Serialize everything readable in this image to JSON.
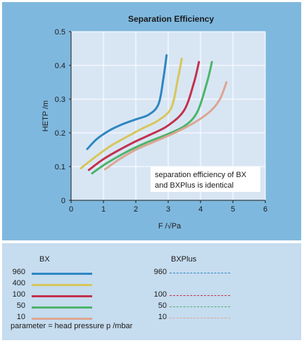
{
  "chart_data": {
    "type": "line",
    "title": "Separation Efficiency",
    "xlabel": "F /√Pa",
    "ylabel": "HETP /m",
    "xlim": [
      0,
      6
    ],
    "ylim": [
      0,
      0.5
    ],
    "xticks": [
      "0",
      "1",
      "2",
      "3",
      "4",
      "5",
      "6"
    ],
    "yticks": [
      "0",
      "0.1",
      "0.2",
      "0.3",
      "0.4",
      "0.5"
    ],
    "grid": true,
    "annotation": "separation efficiency of BX and BXPlus is identical",
    "series": [
      {
        "name": "960",
        "color": "#2e86c1",
        "x": [
          0.5,
          0.8,
          1.2,
          1.6,
          2.0,
          2.4,
          2.7,
          2.85,
          2.95
        ],
        "y": [
          0.152,
          0.182,
          0.208,
          0.226,
          0.24,
          0.254,
          0.285,
          0.36,
          0.43
        ]
      },
      {
        "name": "400",
        "color": "#d7c65a",
        "x": [
          0.3,
          0.7,
          1.2,
          1.7,
          2.2,
          2.7,
          3.1,
          3.3,
          3.42
        ],
        "y": [
          0.095,
          0.125,
          0.16,
          0.187,
          0.213,
          0.237,
          0.275,
          0.36,
          0.42
        ]
      },
      {
        "name": "100",
        "color": "#c3314d",
        "x": [
          0.55,
          1.0,
          1.5,
          2.0,
          2.5,
          3.0,
          3.5,
          3.8,
          3.95
        ],
        "y": [
          0.09,
          0.122,
          0.15,
          0.175,
          0.197,
          0.222,
          0.268,
          0.35,
          0.41
        ]
      },
      {
        "name": "50",
        "color": "#4cb46a",
        "x": [
          0.65,
          1.1,
          1.7,
          2.3,
          2.9,
          3.5,
          3.9,
          4.2,
          4.35
        ],
        "y": [
          0.08,
          0.11,
          0.143,
          0.17,
          0.193,
          0.22,
          0.262,
          0.35,
          0.41
        ]
      },
      {
        "name": "10",
        "color": "#dda592",
        "x": [
          1.05,
          1.5,
          2.0,
          2.6,
          3.2,
          3.8,
          4.3,
          4.6,
          4.8
        ],
        "y": [
          0.092,
          0.122,
          0.15,
          0.175,
          0.2,
          0.23,
          0.264,
          0.3,
          0.35
        ]
      }
    ]
  },
  "legend": {
    "bx_header": "BX",
    "bxplus_header": "BXPlus",
    "bx_items": [
      {
        "label": "960",
        "color": "#2e86c1"
      },
      {
        "label": "400",
        "color": "#d7c65a"
      },
      {
        "label": "100",
        "color": "#c3314d"
      },
      {
        "label": "50",
        "color": "#4cb46a"
      },
      {
        "label": "10",
        "color": "#dda592"
      }
    ],
    "bxplus_items": [
      {
        "label": "960",
        "color": "#2e86c1"
      },
      {
        "label": "100",
        "color": "#c3314d"
      },
      {
        "label": "50",
        "color": "#4cb46a"
      },
      {
        "label": "10",
        "color": "#dda592"
      }
    ],
    "parameter_note": "parameter = head pressure p /mbar"
  }
}
